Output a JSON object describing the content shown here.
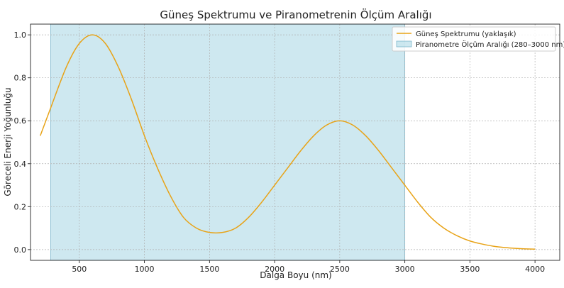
{
  "chart_data": {
    "type": "line",
    "title": "Güneş Spektrumu ve Piranometrenin Ölçüm Aralığı",
    "xlabel": "Dalga Boyu (nm)",
    "ylabel": "Göreceli Enerji Yoğunluğu",
    "xlim": [
      125,
      4190
    ],
    "ylim": [
      -0.05,
      1.05
    ],
    "xticks": [
      500,
      1000,
      1500,
      2000,
      2500,
      3000,
      3500,
      4000
    ],
    "yticks": [
      0.0,
      0.2,
      0.4,
      0.6,
      0.8,
      1.0
    ],
    "xtick_labels": [
      "500",
      "1000",
      "1500",
      "2000",
      "2500",
      "3000",
      "3500",
      "4000"
    ],
    "ytick_labels": [
      "0.0",
      "0.2",
      "0.4",
      "0.6",
      "0.8",
      "1.0"
    ],
    "grid": true,
    "legend_position": "top-right",
    "series": [
      {
        "name": "Güneş Spektrumu (yaklaşık)",
        "color": "#E8A317",
        "x": [
          200,
          280,
          400,
          500,
          600,
          700,
          800,
          900,
          1000,
          1100,
          1200,
          1300,
          1400,
          1500,
          1600,
          1700,
          1800,
          1900,
          2000,
          2100,
          2200,
          2300,
          2400,
          2500,
          2600,
          2700,
          2800,
          2900,
          3000,
          3100,
          3200,
          3300,
          3400,
          3500,
          3600,
          3700,
          3800,
          3900,
          4000
        ],
        "y": [
          0.53,
          0.66,
          0.85,
          0.96,
          1.0,
          0.96,
          0.85,
          0.7,
          0.53,
          0.38,
          0.25,
          0.15,
          0.1,
          0.08,
          0.08,
          0.1,
          0.15,
          0.22,
          0.3,
          0.38,
          0.46,
          0.53,
          0.58,
          0.6,
          0.58,
          0.53,
          0.46,
          0.38,
          0.3,
          0.22,
          0.15,
          0.1,
          0.065,
          0.04,
          0.025,
          0.014,
          0.008,
          0.004,
          0.002
        ]
      }
    ],
    "bands": [
      {
        "name": "Piranometre Ölçüm Aralığı (280–3000 nm)",
        "x_start": 280,
        "x_end": 3000,
        "color": "#ADD8E6"
      }
    ]
  }
}
